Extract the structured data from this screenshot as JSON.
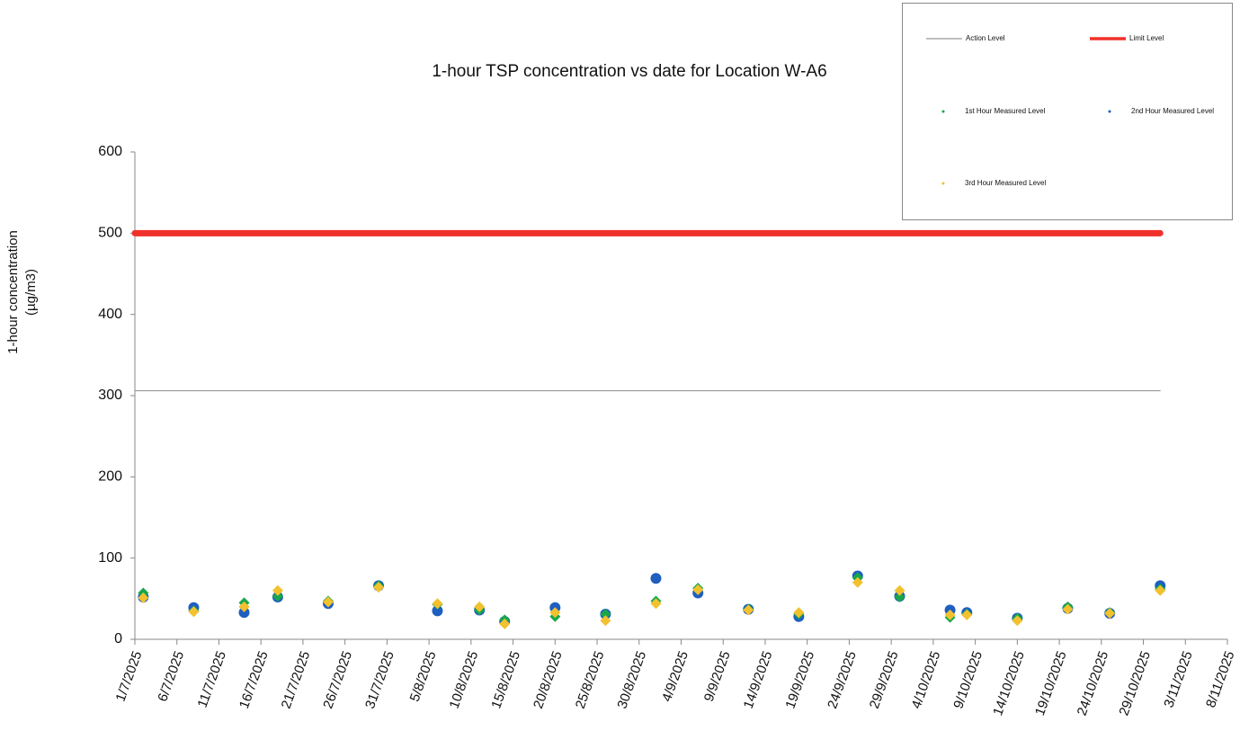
{
  "chart_data": {
    "type": "scatter",
    "title": "1-hour TSP concentration vs date for Location  W-A6",
    "ylabel": [
      "1-hour concentration",
      "(µg/m3)"
    ],
    "xlim": [
      "1/7/2025",
      "8/11/2025"
    ],
    "xticks": [
      "1/7/2025",
      "6/7/2025",
      "11/7/2025",
      "16/7/2025",
      "21/7/2025",
      "26/7/2025",
      "31/7/2025",
      "5/8/2025",
      "10/8/2025",
      "15/8/2025",
      "20/8/2025",
      "25/8/2025",
      "30/8/2025",
      "4/9/2025",
      "9/9/2025",
      "14/9/2025",
      "19/9/2025",
      "24/9/2025",
      "29/9/2025",
      "4/10/2025",
      "9/10/2025",
      "14/10/2025",
      "19/10/2025",
      "24/10/2025",
      "29/10/2025",
      "3/11/2025",
      "8/11/2025"
    ],
    "ylim": [
      0,
      600
    ],
    "yticks": [
      0,
      100,
      200,
      300,
      400,
      500,
      600
    ],
    "series": [
      {
        "name": "Action Level",
        "color": "#9a9a9a",
        "marker": "line",
        "x": [
          "1/7/2025",
          "31/10/2025"
        ],
        "values": [
          306,
          306
        ]
      },
      {
        "name": "Limit Level",
        "color": "#f0302a",
        "marker": "thick-line",
        "x": [
          "1/7/2025",
          "31/10/2025"
        ],
        "values": [
          500,
          500
        ]
      },
      {
        "name": "2nd Hour Measured Level",
        "color": "#1f5fbf",
        "marker": "circle",
        "x": [
          "2/7/2025",
          "8/7/2025",
          "14/7/2025",
          "18/7/2025",
          "24/7/2025",
          "30/7/2025",
          "6/8/2025",
          "11/8/2025",
          "14/8/2025",
          "20/8/2025",
          "26/8/2025",
          "1/9/2025",
          "6/9/2025",
          "12/9/2025",
          "18/9/2025",
          "25/9/2025",
          "30/9/2025",
          "6/10/2025",
          "8/10/2025",
          "14/10/2025",
          "20/10/2025",
          "25/10/2025",
          "31/10/2025"
        ],
        "values": [
          52,
          39,
          33,
          52,
          44,
          66,
          35,
          36,
          22,
          39,
          31,
          75,
          57,
          37,
          28,
          78,
          53,
          36,
          33,
          26,
          38,
          32,
          66
        ]
      },
      {
        "name": "1st Hour Measured Level",
        "color": "#19a64a",
        "marker": "diamond",
        "x": [
          "2/7/2025",
          "8/7/2025",
          "14/7/2025",
          "18/7/2025",
          "24/7/2025",
          "30/7/2025",
          "6/8/2025",
          "11/8/2025",
          "14/8/2025",
          "20/8/2025",
          "26/8/2025",
          "1/9/2025",
          "6/9/2025",
          "12/9/2025",
          "18/9/2025",
          "25/9/2025",
          "30/9/2025",
          "6/10/2025",
          "8/10/2025",
          "14/10/2025",
          "20/10/2025",
          "25/10/2025",
          "31/10/2025"
        ],
        "values": [
          57,
          35,
          45,
          53,
          47,
          66,
          43,
          36,
          24,
          28,
          31,
          47,
          63,
          37,
          31,
          76,
          52,
          27,
          31,
          26,
          40,
          33,
          62
        ]
      },
      {
        "name": "3rd Hour Measured Level",
        "color": "#f2c12e",
        "marker": "diamond",
        "x": [
          "2/7/2025",
          "8/7/2025",
          "14/7/2025",
          "18/7/2025",
          "24/7/2025",
          "30/7/2025",
          "6/8/2025",
          "11/8/2025",
          "14/8/2025",
          "20/8/2025",
          "26/8/2025",
          "1/9/2025",
          "6/9/2025",
          "12/9/2025",
          "18/9/2025",
          "25/9/2025",
          "30/9/2025",
          "6/10/2025",
          "8/10/2025",
          "14/10/2025",
          "20/10/2025",
          "25/10/2025",
          "31/10/2025"
        ],
        "values": [
          51,
          34,
          40,
          60,
          46,
          64,
          44,
          40,
          19,
          33,
          23,
          44,
          61,
          36,
          33,
          70,
          60,
          30,
          30,
          23,
          37,
          32,
          60
        ]
      }
    ],
    "legend_order": [
      0,
      1,
      3,
      2,
      4
    ]
  }
}
